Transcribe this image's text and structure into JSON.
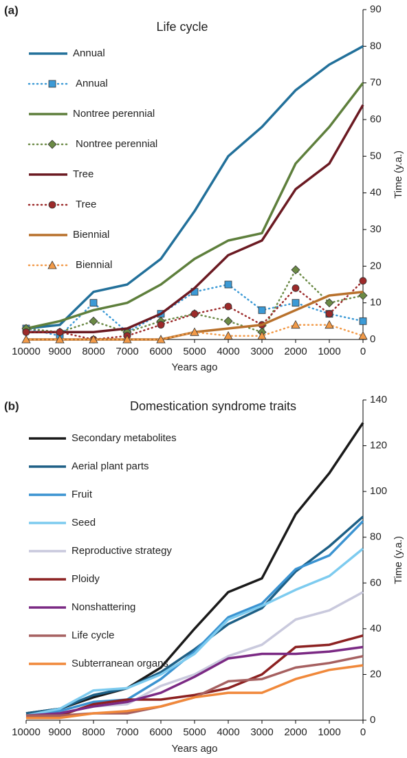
{
  "chart_data": [
    {
      "type": "line",
      "panel_label": "(a)",
      "title": "Life cycle",
      "xlabel": "Years ago",
      "ylabel": "Time (y.a.)",
      "x": [
        10000,
        9000,
        8000,
        7000,
        6000,
        5000,
        4000,
        3000,
        2000,
        1000,
        0
      ],
      "xlim": [
        10000,
        0
      ],
      "xticks": [
        10000,
        9000,
        8000,
        7000,
        6000,
        5000,
        4000,
        3000,
        2000,
        1000,
        0
      ],
      "ylim": [
        0,
        90
      ],
      "yticks": [
        0,
        10,
        20,
        30,
        40,
        50,
        60,
        70,
        80,
        90
      ],
      "series": [
        {
          "name": "Annual",
          "color": "#22709a",
          "style": "solid",
          "values": [
            3,
            4,
            13,
            15,
            22,
            35,
            50,
            58,
            68,
            75,
            80
          ]
        },
        {
          "name": "Annual",
          "color": "#3c9ad6",
          "style": "dotted",
          "marker": "square",
          "values": [
            3,
            1,
            10,
            2,
            7,
            13,
            15,
            8,
            10,
            7,
            5
          ]
        },
        {
          "name": "Nontree perennial",
          "color": "#5e7f3c",
          "style": "solid",
          "values": [
            3,
            5,
            8,
            10,
            15,
            22,
            27,
            29,
            48,
            58,
            70
          ]
        },
        {
          "name": "Nontree perennial",
          "color": "#6b8a45",
          "style": "dotted",
          "marker": "diamond",
          "values": [
            3,
            2,
            5,
            2,
            5,
            7,
            5,
            2,
            19,
            10,
            12
          ]
        },
        {
          "name": "Tree",
          "color": "#6b1a22",
          "style": "solid",
          "values": [
            2,
            2,
            2,
            3,
            7,
            14,
            23,
            27,
            41,
            48,
            64
          ]
        },
        {
          "name": "Tree",
          "color": "#9c2a2a",
          "style": "dotted",
          "marker": "circle",
          "values": [
            2,
            2,
            0,
            1,
            4,
            7,
            9,
            4,
            14,
            7,
            16
          ]
        },
        {
          "name": "Biennial",
          "color": "#b8712c",
          "style": "solid",
          "values": [
            0,
            0,
            0,
            0,
            0,
            2,
            3,
            4,
            8,
            12,
            13
          ]
        },
        {
          "name": "Biennial",
          "color": "#f29a48",
          "style": "dotted",
          "marker": "triangle",
          "values": [
            0,
            0,
            0,
            0,
            0,
            2,
            1,
            1,
            4,
            4,
            1
          ]
        }
      ]
    },
    {
      "type": "line",
      "panel_label": "(b)",
      "title": "Domestication syndrome traits",
      "xlabel": "Years ago",
      "ylabel": "Time (y.a.)",
      "x": [
        10000,
        9000,
        8000,
        7000,
        6000,
        5000,
        4000,
        3000,
        2000,
        1000,
        0
      ],
      "xlim": [
        10000,
        0
      ],
      "xticks": [
        10000,
        9000,
        8000,
        7000,
        6000,
        5000,
        4000,
        3000,
        2000,
        1000,
        0
      ],
      "ylim": [
        0,
        140
      ],
      "yticks": [
        0,
        20,
        40,
        60,
        80,
        100,
        120,
        140
      ],
      "series": [
        {
          "name": "Secondary metabolites",
          "color": "#1a1a1a",
          "style": "solid",
          "values": [
            3,
            5,
            10,
            14,
            23,
            40,
            56,
            62,
            90,
            108,
            130
          ]
        },
        {
          "name": "Aerial plant parts",
          "color": "#1d5f85",
          "style": "solid",
          "values": [
            3,
            5,
            11,
            14,
            21,
            31,
            42,
            49,
            65,
            76,
            89
          ]
        },
        {
          "name": "Fruit",
          "color": "#3b93d1",
          "style": "solid",
          "values": [
            2,
            4,
            8,
            9,
            18,
            30,
            45,
            51,
            66,
            72,
            87
          ]
        },
        {
          "name": "Seed",
          "color": "#7dcbef",
          "style": "solid",
          "values": [
            2,
            5,
            13,
            14,
            20,
            29,
            44,
            50,
            57,
            63,
            75
          ]
        },
        {
          "name": "Reproductive strategy",
          "color": "#c9c9dd",
          "style": "solid",
          "values": [
            1,
            3,
            6,
            7,
            15,
            20,
            28,
            33,
            44,
            48,
            56
          ]
        },
        {
          "name": "Ploidy",
          "color": "#8c2121",
          "style": "solid",
          "values": [
            1,
            2,
            7,
            9,
            9,
            11,
            14,
            20,
            32,
            33,
            37
          ]
        },
        {
          "name": "Nonshattering",
          "color": "#7b2a84",
          "style": "solid",
          "values": [
            2,
            3,
            6,
            8,
            12,
            19,
            27,
            29,
            29,
            30,
            32
          ]
        },
        {
          "name": "Life cycle",
          "color": "#a66060",
          "style": "solid",
          "values": [
            2,
            2,
            3,
            3,
            6,
            10,
            17,
            18,
            23,
            25,
            28
          ]
        },
        {
          "name": "Subterranean organs",
          "color": "#f0883a",
          "style": "solid",
          "values": [
            1,
            1,
            3,
            4,
            6,
            10,
            12,
            12,
            18,
            22,
            24
          ]
        }
      ]
    }
  ]
}
